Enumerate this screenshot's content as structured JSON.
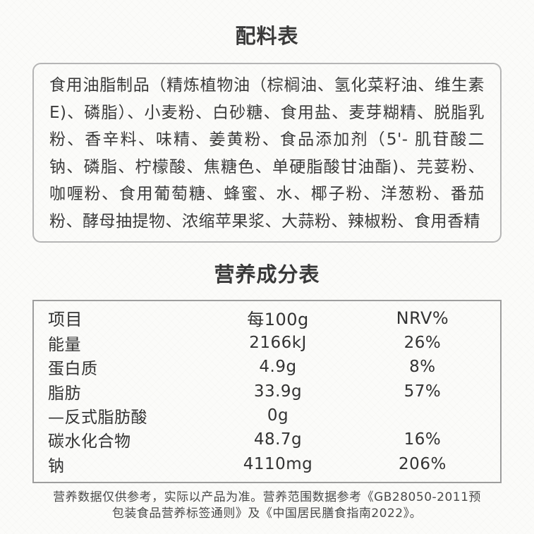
{
  "colors": {
    "background": "#fbfbf9",
    "text": "#3a3a3a",
    "ingredients_border": "#b5b5b5",
    "nutrition_border": "#9d9d9d",
    "footer_text": "#4a4a4a"
  },
  "ingredients": {
    "title": "配料表",
    "text": "食用油脂制品（精炼植物油（棕榈油、氢化菜籽油、维生素 E)、磷脂）、小麦粉、白砂糖、食用盐、麦芽糊精、脱脂乳粉、香辛料、味精、姜黄粉、食品添加剂（5'- 肌苷酸二钠、磷脂、柠檬酸、焦糖色、单硬脂酸甘油酯)、芫荽粉、咖喱粉、食用葡萄糖、蜂蜜、水、椰子粉、洋葱粉、番茄粉、酵母抽提物、浓缩苹果浆、大蒜粉、辣椒粉、食用香精"
  },
  "nutrition": {
    "title": "营养成分表",
    "columns": [
      "项目",
      "每100g",
      "NRV%"
    ],
    "rows": [
      {
        "item": "能量",
        "per100g": "2166kJ",
        "nrv": "26%"
      },
      {
        "item": "蛋白质",
        "per100g": "4.9g",
        "nrv": "8%"
      },
      {
        "item": "脂肪",
        "per100g": "33.9g",
        "nrv": "57%"
      },
      {
        "item": "—反式脂肪酸",
        "per100g": "0g",
        "nrv": ""
      },
      {
        "item": "碳水化合物",
        "per100g": "48.7g",
        "nrv": "16%"
      },
      {
        "item": "钠",
        "per100g": "4110mg",
        "nrv": "206%"
      }
    ]
  },
  "footer": {
    "lines": [
      "营养数据仅供参考，实际以产品为准。营养范围数据参考《GB28050-2011预",
      "包装食品营养标签通则》及《中国居民膳食指南2022》。"
    ]
  }
}
